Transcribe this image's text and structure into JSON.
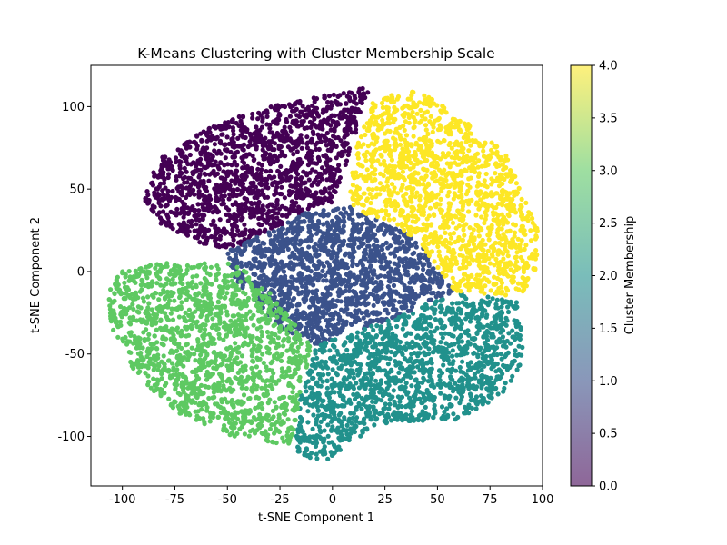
{
  "chart_data": {
    "type": "scatter",
    "title": "K-Means Clustering with Cluster Membership Scale",
    "xlabel": "t-SNE Component 1",
    "ylabel": "t-SNE Component 2",
    "xlim": [
      -115,
      100
    ],
    "ylim": [
      -130,
      125
    ],
    "xticks": [
      -100,
      -75,
      -50,
      -25,
      0,
      25,
      50,
      75,
      100
    ],
    "yticks": [
      -100,
      -50,
      0,
      50,
      100
    ],
    "colorbar": {
      "label": "Cluster Membership",
      "range": [
        0.0,
        4.0
      ],
      "ticks": [
        "0.0",
        "0.5",
        "1.0",
        "1.5",
        "2.0",
        "2.5",
        "3.0",
        "3.5",
        "4.0"
      ],
      "colormap": "viridis",
      "alpha": 0.6
    },
    "grid": false,
    "series": [
      {
        "cluster": 0,
        "color": "#440154",
        "center": [
          -35,
          65
        ],
        "polygon": [
          [
            -90,
            45
          ],
          [
            -82,
            70
          ],
          [
            -62,
            85
          ],
          [
            -40,
            97
          ],
          [
            -20,
            103
          ],
          [
            0,
            108
          ],
          [
            18,
            112
          ],
          [
            8,
            70
          ],
          [
            0,
            42
          ],
          [
            -15,
            35
          ],
          [
            -48,
            12
          ],
          [
            -65,
            18
          ],
          [
            -83,
            30
          ]
        ]
      },
      {
        "cluster": 1,
        "color": "#3b528b",
        "center": [
          0,
          0
        ],
        "polygon": [
          [
            -50,
            12
          ],
          [
            -15,
            35
          ],
          [
            8,
            40
          ],
          [
            40,
            20
          ],
          [
            58,
            -12
          ],
          [
            30,
            -28
          ],
          [
            -8,
            -45
          ],
          [
            -22,
            -38
          ],
          [
            -47,
            -5
          ]
        ]
      },
      {
        "cluster": 2,
        "color": "#21918c",
        "center": [
          45,
          -60
        ],
        "polygon": [
          [
            -8,
            -45
          ],
          [
            30,
            -28
          ],
          [
            58,
            -12
          ],
          [
            88,
            -18
          ],
          [
            92,
            -55
          ],
          [
            80,
            -75
          ],
          [
            60,
            -90
          ],
          [
            22,
            -92
          ],
          [
            -5,
            -117
          ],
          [
            -18,
            -108
          ],
          [
            -15,
            -75
          ]
        ]
      },
      {
        "cluster": 3,
        "color": "#5ec962",
        "center": [
          -62,
          -40
        ],
        "polygon": [
          [
            -108,
            -12
          ],
          [
            -100,
            0
          ],
          [
            -85,
            5
          ],
          [
            -62,
            5
          ],
          [
            -45,
            5
          ],
          [
            -28,
            -15
          ],
          [
            -10,
            -45
          ],
          [
            -15,
            -75
          ],
          [
            -20,
            -105
          ],
          [
            -50,
            -100
          ],
          [
            -75,
            -85
          ],
          [
            -95,
            -60
          ],
          [
            -105,
            -35
          ]
        ]
      },
      {
        "cluster": 4,
        "color": "#fde725",
        "center": [
          50,
          55
        ],
        "polygon": [
          [
            8,
            40
          ],
          [
            10,
            70
          ],
          [
            20,
            105
          ],
          [
            40,
            110
          ],
          [
            60,
            95
          ],
          [
            82,
            72
          ],
          [
            92,
            45
          ],
          [
            98,
            25
          ],
          [
            98,
            0
          ],
          [
            90,
            -15
          ],
          [
            58,
            -12
          ],
          [
            40,
            20
          ]
        ]
      }
    ]
  }
}
